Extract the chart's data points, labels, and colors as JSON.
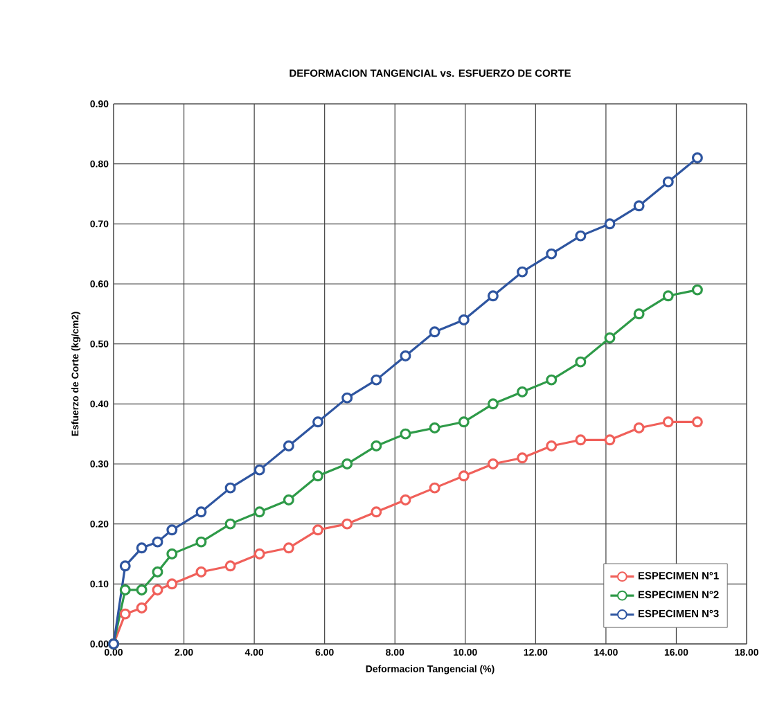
{
  "chart_data": {
    "type": "line",
    "title": "DEFORMACION TANGENCIAL vs. ESFUERZO DE CORTE",
    "xlabel": "Deformacion Tangencial (%)",
    "ylabel": "Esfuerzo de Corte (kg/cm2)",
    "x": [
      0,
      0.33,
      0.8,
      1.25,
      1.66,
      2.49,
      3.32,
      4.15,
      4.98,
      5.81,
      6.64,
      7.47,
      8.3,
      9.13,
      9.96,
      10.79,
      11.62,
      12.45,
      13.28,
      14.11,
      14.94,
      15.77,
      16.6
    ],
    "series": [
      {
        "name": "ESPECIMEN N°1",
        "color": "#f0605a",
        "values": [
          0,
          0.05,
          0.06,
          0.09,
          0.1,
          0.12,
          0.13,
          0.15,
          0.16,
          0.19,
          0.2,
          0.22,
          0.24,
          0.26,
          0.28,
          0.3,
          0.31,
          0.33,
          0.34,
          0.34,
          0.36,
          0.37,
          0.37
        ]
      },
      {
        "name": "ESPECIMEN N°2",
        "color": "#2e9a48",
        "values": [
          0,
          0.09,
          0.09,
          0.12,
          0.15,
          0.17,
          0.2,
          0.22,
          0.24,
          0.28,
          0.3,
          0.33,
          0.35,
          0.36,
          0.37,
          0.4,
          0.42,
          0.44,
          0.47,
          0.51,
          0.55,
          0.58,
          0.59
        ]
      },
      {
        "name": "ESPECIMEN N°3",
        "color": "#2e55a0",
        "values": [
          0,
          0.13,
          0.16,
          0.17,
          0.19,
          0.22,
          0.26,
          0.29,
          0.33,
          0.37,
          0.41,
          0.44,
          0.48,
          0.52,
          0.54,
          0.58,
          0.62,
          0.65,
          0.68,
          0.7,
          0.73,
          0.77,
          0.81
        ]
      }
    ],
    "xlim": [
      0,
      18
    ],
    "xticks": [
      {
        "value": 0,
        "label": "0.00"
      },
      {
        "value": 2,
        "label": "2.00"
      },
      {
        "value": 4,
        "label": "4.00"
      },
      {
        "value": 6,
        "label": "6.00"
      },
      {
        "value": 8,
        "label": "8.00"
      },
      {
        "value": 10,
        "label": "10.00"
      },
      {
        "value": 12,
        "label": "12.00"
      },
      {
        "value": 14,
        "label": "14.00"
      },
      {
        "value": 16,
        "label": "16.00"
      },
      {
        "value": 18,
        "label": "18.00"
      }
    ],
    "ylim": [
      0,
      0.9
    ],
    "yticks": [
      {
        "value": 0,
        "label": "0.00"
      },
      {
        "value": 0.1,
        "label": "0.10"
      },
      {
        "value": 0.2,
        "label": "0.20"
      },
      {
        "value": 0.3,
        "label": "0.30"
      },
      {
        "value": 0.4,
        "label": "0.40"
      },
      {
        "value": 0.5,
        "label": "0.50"
      },
      {
        "value": 0.6,
        "label": "0.60"
      },
      {
        "value": 0.7,
        "label": "0.70"
      },
      {
        "value": 0.8,
        "label": "0.80"
      },
      {
        "value": 0.9,
        "label": "0.90"
      }
    ],
    "grid": true,
    "legend": "bottom right",
    "marker": "circle",
    "line_style": "solid"
  }
}
